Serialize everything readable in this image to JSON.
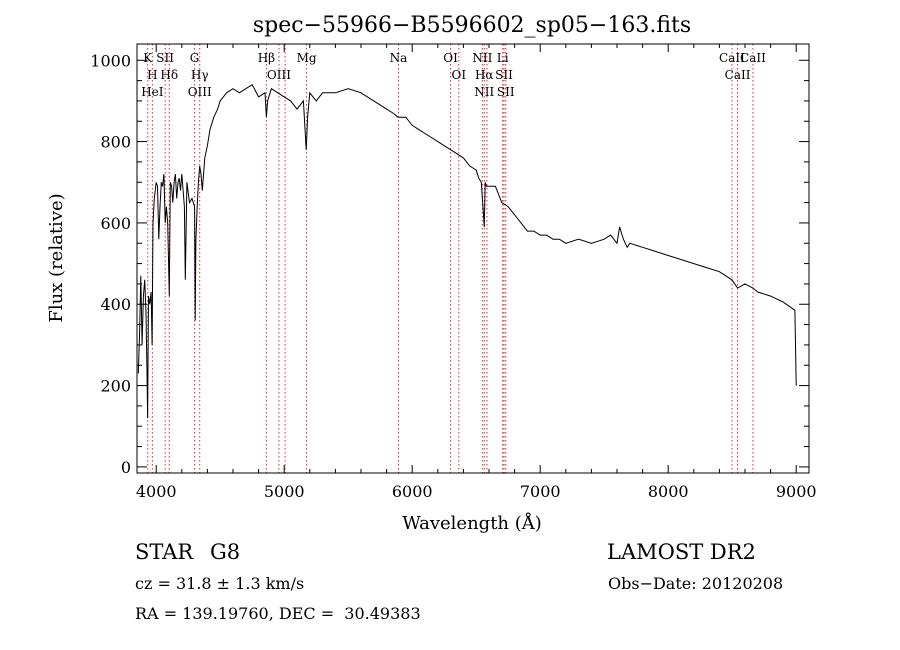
{
  "chart_data": {
    "type": "line",
    "title": "spec−55966−B5596602_sp05−163.fits",
    "xlabel": "Wavelength (Å)",
    "ylabel": "Flux (relative)",
    "xlim": [
      3850,
      9100
    ],
    "ylim": [
      -15,
      1040
    ],
    "xticks": [
      4000,
      5000,
      6000,
      7000,
      8000,
      9000
    ],
    "yticks": [
      0,
      200,
      400,
      600,
      800,
      1000
    ],
    "grid": false,
    "series": [
      {
        "x": [
          3860,
          3870,
          3880,
          3890,
          3900,
          3910,
          3920,
          3930,
          3933,
          3940,
          3950,
          3960,
          3968,
          3975,
          3985,
          4000,
          4010,
          4020,
          4030,
          4040,
          4050,
          4060,
          4070,
          4080,
          4090,
          4102,
          4110,
          4120,
          4130,
          4140,
          4150,
          4160,
          4170,
          4180,
          4190,
          4200,
          4210,
          4220,
          4227,
          4240,
          4260,
          4280,
          4300,
          4305,
          4310,
          4320,
          4330,
          4340,
          4350,
          4360,
          4380,
          4400,
          4420,
          4450,
          4480,
          4500,
          4550,
          4600,
          4650,
          4700,
          4750,
          4800,
          4850,
          4861,
          4870,
          4900,
          4950,
          5000,
          5050,
          5100,
          5150,
          5172,
          5183,
          5200,
          5250,
          5300,
          5400,
          5500,
          5600,
          5700,
          5800,
          5850,
          5890,
          5900,
          5950,
          6000,
          6050,
          6100,
          6150,
          6200,
          6250,
          6300,
          6350,
          6400,
          6450,
          6500,
          6520,
          6540,
          6563,
          6570,
          6580,
          6600,
          6650,
          6700,
          6750,
          6800,
          6850,
          6900,
          6950,
          7000,
          7050,
          7100,
          7150,
          7200,
          7300,
          7400,
          7500,
          7550,
          7600,
          7620,
          7650,
          7680,
          7700,
          7800,
          7900,
          8000,
          8100,
          8200,
          8300,
          8400,
          8498,
          8542,
          8600,
          8662,
          8700,
          8800,
          8900,
          8990,
          9000
        ],
        "y": [
          230,
          330,
          470,
          300,
          420,
          460,
          380,
          200,
          120,
          420,
          400,
          430,
          300,
          600,
          660,
          700,
          690,
          560,
          640,
          700,
          690,
          720,
          600,
          640,
          600,
          420,
          700,
          690,
          650,
          700,
          720,
          660,
          700,
          710,
          680,
          720,
          680,
          640,
          460,
          700,
          650,
          660,
          640,
          360,
          560,
          640,
          700,
          740,
          720,
          680,
          760,
          790,
          830,
          860,
          880,
          900,
          920,
          930,
          920,
          930,
          940,
          910,
          920,
          860,
          900,
          930,
          920,
          910,
          900,
          880,
          900,
          780,
          860,
          920,
          900,
          920,
          920,
          930,
          920,
          900,
          880,
          870,
          860,
          860,
          860,
          840,
          830,
          820,
          810,
          800,
          790,
          780,
          770,
          760,
          740,
          730,
          710,
          700,
          590,
          700,
          690,
          690,
          690,
          650,
          640,
          620,
          600,
          580,
          580,
          570,
          570,
          560,
          560,
          550,
          560,
          550,
          560,
          570,
          550,
          590,
          560,
          540,
          550,
          540,
          530,
          520,
          510,
          500,
          490,
          480,
          460,
          440,
          450,
          440,
          430,
          420,
          405,
          385,
          200
        ]
      }
    ],
    "annotations": {
      "lines": [
        {
          "x": 3934,
          "labels": [
            "K"
          ]
        },
        {
          "x": 3970,
          "labels": [
            "H",
            "HeI"
          ]
        },
        {
          "x": 4070,
          "labels": [
            "SII"
          ]
        },
        {
          "x": 4102,
          "labels": [
            "Hδ"
          ]
        },
        {
          "x": 4300,
          "labels": [
            "G"
          ]
        },
        {
          "x": 4340,
          "labels": [
            "Hγ",
            "OIII"
          ]
        },
        {
          "x": 4861,
          "labels": [
            "Hβ"
          ]
        },
        {
          "x": 4959,
          "labels": [
            "OIII"
          ]
        },
        {
          "x": 5007,
          "labels": []
        },
        {
          "x": 5175,
          "labels": [
            "Mg"
          ]
        },
        {
          "x": 5893,
          "labels": [
            "Na"
          ]
        },
        {
          "x": 6300,
          "labels": [
            "OI"
          ]
        },
        {
          "x": 6364,
          "labels": [
            "OI"
          ]
        },
        {
          "x": 6548,
          "labels": [
            "NII"
          ]
        },
        {
          "x": 6563,
          "labels": [
            "Hα",
            "NII"
          ]
        },
        {
          "x": 6584,
          "labels": []
        },
        {
          "x": 6707,
          "labels": [
            "Li"
          ]
        },
        {
          "x": 6717,
          "labels": [
            "SII"
          ]
        },
        {
          "x": 6731,
          "labels": [
            "SII"
          ]
        },
        {
          "x": 8498,
          "labels": [
            "CaII"
          ]
        },
        {
          "x": 8542,
          "labels": [
            "CaII"
          ]
        },
        {
          "x": 8662,
          "labels": [
            "CaII"
          ]
        }
      ]
    }
  },
  "info": {
    "class_label": "STAR",
    "subclass": "G8",
    "survey": "LAMOST DR2",
    "cz": "cz = 31.8 ± 1.3 km/s",
    "obs_date": "Obs−Date: 20120208",
    "radec": "RA = 139.19760, DEC =  30.49383"
  },
  "colors": {
    "spectrum": "#000000",
    "line_marker": "#d03030",
    "background": "#ffffff"
  }
}
